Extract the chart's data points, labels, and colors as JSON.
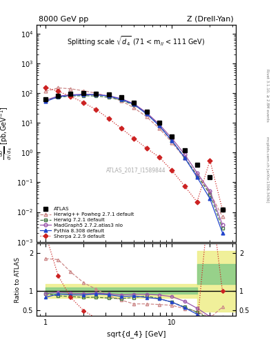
{
  "atlas_x": [
    1.0,
    1.26,
    1.58,
    2.0,
    2.51,
    3.16,
    3.98,
    5.01,
    6.31,
    7.94,
    10.0,
    12.6,
    15.8,
    20.0,
    25.1
  ],
  "atlas_y": [
    62,
    82,
    93,
    98,
    95,
    88,
    72,
    48,
    24,
    10,
    3.5,
    1.2,
    0.38,
    0.15,
    0.012
  ],
  "herwig_powheg_x": [
    1.0,
    1.26,
    1.58,
    2.0,
    2.51,
    3.16,
    3.98,
    5.01,
    6.31,
    7.94,
    10.0,
    12.6,
    15.8,
    20.0,
    25.1
  ],
  "herwig_powheg_y": [
    115,
    150,
    140,
    120,
    100,
    78,
    55,
    32,
    16,
    6.5,
    2.2,
    0.65,
    0.18,
    0.045,
    0.007
  ],
  "herwig721_x": [
    1.0,
    1.26,
    1.58,
    2.0,
    2.51,
    3.16,
    3.98,
    5.01,
    6.31,
    7.94,
    10.0,
    12.6,
    15.8,
    20.0,
    25.1
  ],
  "herwig721_y": [
    58,
    72,
    80,
    82,
    80,
    72,
    58,
    40,
    21,
    8.0,
    2.5,
    0.7,
    0.17,
    0.04,
    0.0028
  ],
  "madgraph_x": [
    1.0,
    1.26,
    1.58,
    2.0,
    2.51,
    3.16,
    3.98,
    5.01,
    6.31,
    7.94,
    10.0,
    12.6,
    15.8,
    20.0,
    25.1
  ],
  "madgraph_y": [
    58,
    80,
    88,
    92,
    90,
    82,
    65,
    44,
    22,
    9.0,
    3.0,
    0.88,
    0.21,
    0.05,
    0.0038
  ],
  "pythia_x": [
    1.0,
    1.26,
    1.58,
    2.0,
    2.51,
    3.16,
    3.98,
    5.01,
    6.31,
    7.94,
    10.0,
    12.6,
    15.8,
    20.0,
    25.1
  ],
  "pythia_y": [
    52,
    76,
    84,
    88,
    88,
    80,
    62,
    42,
    20,
    8.0,
    2.5,
    0.68,
    0.15,
    0.028,
    0.002
  ],
  "sherpa_x": [
    1.0,
    1.26,
    1.58,
    2.0,
    2.51,
    3.16,
    3.98,
    5.01,
    6.31,
    7.94,
    10.0,
    12.6,
    15.8,
    20.0,
    25.1
  ],
  "sherpa_y": [
    155,
    115,
    78,
    48,
    28,
    14,
    6.5,
    3.0,
    1.4,
    0.7,
    0.25,
    0.075,
    0.022,
    0.55,
    0.012
  ],
  "colors": {
    "atlas": "#000000",
    "herwig_powheg": "#cc8888",
    "herwig721": "#447744",
    "madgraph": "#9955aa",
    "pythia": "#2244cc",
    "sherpa": "#cc2222"
  },
  "band1_xlo": 1.0,
  "band1_xhi": 15.8,
  "band_green_lo": 0.93,
  "band_green_hi": 1.09,
  "band_yellow_lo": 0.82,
  "band_yellow_hi": 1.19,
  "band2_xlo": 15.8,
  "band2_xhi": 35.0,
  "band2_green_lo": 1.18,
  "band2_green_hi": 1.72,
  "band2_yellow_lo": 0.47,
  "band2_yellow_hi": 2.05,
  "ylim_main": [
    0.001,
    20000.0
  ],
  "ylim_ratio": [
    0.35,
    2.25
  ],
  "xlim": [
    0.85,
    32.0
  ],
  "yticks_ratio": [
    0.5,
    1.0,
    2.0
  ],
  "ytick_labels_ratio": [
    "0.5",
    "1",
    "2"
  ]
}
